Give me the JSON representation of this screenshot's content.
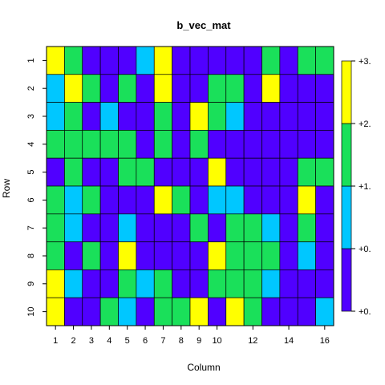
{
  "chart_data": {
    "type": "heatmap",
    "title": "b_vec_mat",
    "xlabel": "Column",
    "ylabel": "Row",
    "rows": [
      "1",
      "2",
      "3",
      "4",
      "5",
      "6",
      "7",
      "8",
      "9",
      "10"
    ],
    "x_tick_labels": [
      {
        "col": 1,
        "label": "1"
      },
      {
        "col": 2,
        "label": "2"
      },
      {
        "col": 3,
        "label": "3"
      },
      {
        "col": 4,
        "label": "4"
      },
      {
        "col": 5,
        "label": "5"
      },
      {
        "col": 6,
        "label": "6"
      },
      {
        "col": 7,
        "label": "7"
      },
      {
        "col": 8,
        "label": "8"
      },
      {
        "col": 9,
        "label": "9"
      },
      {
        "col": 10,
        "label": "10"
      },
      {
        "col": 12,
        "label": "12"
      },
      {
        "col": 14,
        "label": "14"
      },
      {
        "col": 16,
        "label": "16"
      }
    ],
    "levels": [
      {
        "color": "#5000FF",
        "label": "+0."
      },
      {
        "color": "#00C7FF",
        "label": "+1."
      },
      {
        "color": "#1AE05A",
        "label": "+2."
      },
      {
        "color": "#FFFF00",
        "label": "+3."
      }
    ],
    "legend_tick_labels": [
      "+0.",
      "+0.",
      "+1.",
      "+2.",
      "+3."
    ],
    "legend_position": "right",
    "values": [
      [
        3,
        2,
        0,
        0,
        0,
        1,
        3,
        0,
        0,
        0,
        0,
        0,
        2,
        0,
        2,
        2
      ],
      [
        1,
        3,
        2,
        0,
        2,
        0,
        3,
        0,
        0,
        2,
        2,
        0,
        3,
        0,
        0,
        0
      ],
      [
        1,
        2,
        0,
        1,
        0,
        0,
        2,
        0,
        3,
        2,
        1,
        0,
        0,
        0,
        0,
        0
      ],
      [
        2,
        2,
        2,
        2,
        2,
        0,
        2,
        0,
        2,
        0,
        0,
        0,
        0,
        0,
        0,
        0
      ],
      [
        0,
        2,
        0,
        0,
        2,
        2,
        0,
        0,
        0,
        3,
        0,
        0,
        0,
        0,
        2,
        2
      ],
      [
        2,
        1,
        2,
        0,
        0,
        0,
        3,
        2,
        0,
        1,
        1,
        0,
        0,
        0,
        3,
        0
      ],
      [
        2,
        1,
        0,
        0,
        1,
        0,
        0,
        0,
        2,
        0,
        2,
        2,
        1,
        0,
        2,
        0
      ],
      [
        2,
        0,
        2,
        0,
        3,
        0,
        0,
        0,
        0,
        3,
        2,
        2,
        2,
        0,
        1,
        0
      ],
      [
        3,
        1,
        0,
        0,
        2,
        1,
        2,
        0,
        0,
        2,
        2,
        2,
        1,
        0,
        0,
        0
      ],
      [
        3,
        0,
        0,
        2,
        1,
        0,
        2,
        2,
        3,
        0,
        3,
        2,
        0,
        0,
        0,
        1
      ]
    ]
  }
}
